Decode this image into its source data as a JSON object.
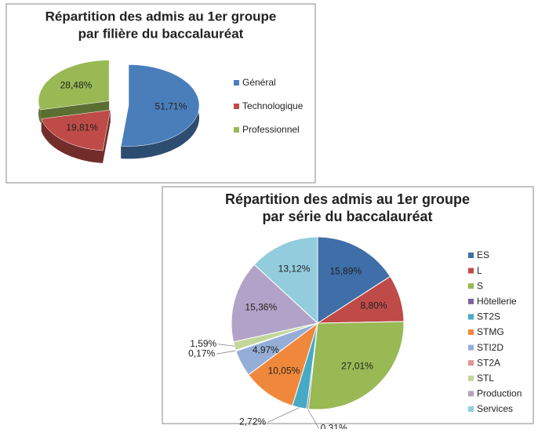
{
  "chart_data": [
    {
      "type": "pie3d",
      "title": [
        "Répartition des admis au 1er groupe",
        "par filière du baccalauréat"
      ],
      "categories": [
        "Général",
        "Technologique",
        "Professionnel"
      ],
      "values": [
        51.71,
        19.81,
        28.48
      ],
      "value_labels": [
        "51,71%",
        "19,81%",
        "28,48%"
      ],
      "colors": [
        "#4a7ebb",
        "#be4b48",
        "#98b954"
      ]
    },
    {
      "type": "pie",
      "title": [
        "Répartition des admis au 1er groupe",
        "par série du baccalauréat"
      ],
      "categories": [
        "ES",
        "L",
        "S",
        "Hôtellerie",
        "ST2S",
        "STMG",
        "STI2D",
        "ST2A",
        "STL",
        "Production",
        "Services"
      ],
      "values": [
        15.89,
        8.8,
        27.01,
        0.31,
        2.72,
        10.05,
        4.97,
        0.17,
        1.59,
        15.36,
        13.12
      ],
      "value_labels": [
        "15,89%",
        "8,80%",
        "27,01%",
        "0,31%",
        "2,72%",
        "10,05%",
        "4,97%",
        "0,17%",
        "1,59%",
        "15,36%",
        "13,12%"
      ],
      "colors": [
        "#3f6ea8",
        "#be4b48",
        "#98b954",
        "#7d60a0",
        "#46aac5",
        "#f0883c",
        "#95aed8",
        "#de9595",
        "#c3d69b",
        "#b3a2c7",
        "#93cddd"
      ]
    }
  ]
}
